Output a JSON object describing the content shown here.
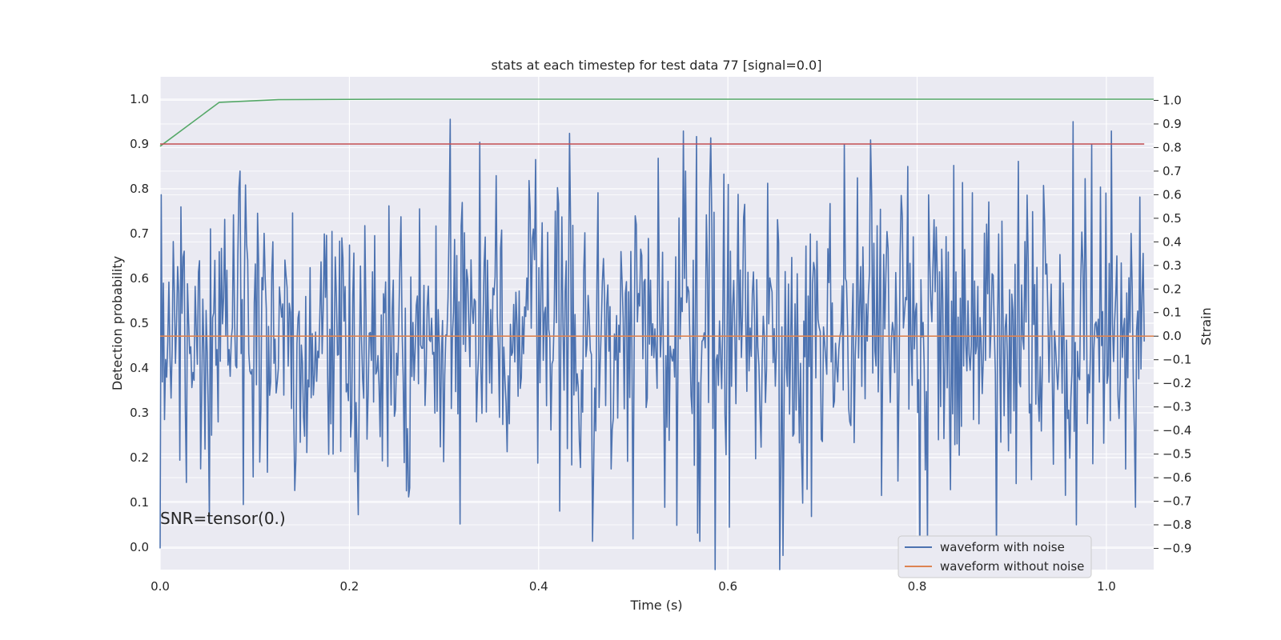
{
  "chart_data": {
    "type": "line",
    "title": "stats at each timestep for test data 77 [signal=0.0]",
    "xlabel": "Time (s)",
    "ylabel": "Detection probability",
    "y2label": "Strain",
    "xlim": [
      0.0,
      1.05
    ],
    "ylim": [
      -0.05,
      1.05
    ],
    "y2lim": [
      -0.99,
      1.1
    ],
    "xticks": [
      "0.0",
      "0.2",
      "0.4",
      "0.6",
      "0.8",
      "1.0"
    ],
    "xtick_values": [
      0.0,
      0.2,
      0.4,
      0.6,
      0.8,
      1.0
    ],
    "yticks": [
      "0.0",
      "0.1",
      "0.2",
      "0.3",
      "0.4",
      "0.5",
      "0.6",
      "0.7",
      "0.8",
      "0.9",
      "1.0"
    ],
    "ytick_values": [
      0.0,
      0.1,
      0.2,
      0.3,
      0.4,
      0.5,
      0.6,
      0.7,
      0.8,
      0.9,
      1.0
    ],
    "y2ticks": [
      "−0.9",
      "−0.8",
      "−0.7",
      "−0.6",
      "−0.5",
      "−0.4",
      "−0.3",
      "−0.2",
      "−0.1",
      "0.0",
      "0.1",
      "0.2",
      "0.3",
      "0.4",
      "0.5",
      "0.6",
      "0.7",
      "0.8",
      "0.9",
      "1.0"
    ],
    "y2tick_values": [
      -0.9,
      -0.8,
      -0.7,
      -0.6,
      -0.5,
      -0.4,
      -0.3,
      -0.2,
      -0.1,
      0.0,
      0.1,
      0.2,
      0.3,
      0.4,
      0.5,
      0.6,
      0.7,
      0.8,
      0.9,
      1.0
    ],
    "grid": true,
    "legend_position": "bottom-right",
    "annotation": "SNR=tensor(0.)",
    "series": [
      {
        "name": "waveform with noise",
        "axis": "right",
        "color": "#4c72b0",
        "x_start": 0.0,
        "x_end": 1.04,
        "points": 900,
        "mean": 0.0,
        "std": 0.32,
        "min": -0.99,
        "max": 0.92,
        "spikes": [
          [
            0.0,
            -0.9
          ],
          [
            0.001,
            0.6
          ],
          [
            0.085,
            0.7
          ],
          [
            0.39,
            0.66
          ],
          [
            0.457,
            -0.87
          ],
          [
            0.5,
            -0.86
          ],
          [
            0.553,
            0.87
          ],
          [
            0.555,
            0.7
          ],
          [
            0.57,
            -0.87
          ],
          [
            0.587,
            -0.99
          ],
          [
            0.79,
            0.72
          ],
          [
            0.965,
            0.91
          ],
          [
            1.005,
            0.87
          ],
          [
            0.968,
            -0.8
          ],
          [
            1.035,
            0.59
          ]
        ]
      },
      {
        "name": "waveform without noise",
        "axis": "right",
        "color": "#dd8452",
        "x": [
          0.0,
          1.05
        ],
        "y": [
          0.0,
          0.0
        ]
      },
      {
        "name": "",
        "axis": "left",
        "color": "#55a868",
        "x": [
          0.0,
          0.0625,
          0.125,
          0.25,
          0.5,
          0.75,
          1.05
        ],
        "y": [
          0.895,
          0.993,
          0.999,
          1.0,
          1.0,
          1.0,
          1.0
        ]
      },
      {
        "name": "",
        "axis": "left",
        "color": "#c44e52",
        "x": [
          0.0,
          1.04
        ],
        "y": [
          0.9,
          0.9
        ]
      }
    ]
  }
}
